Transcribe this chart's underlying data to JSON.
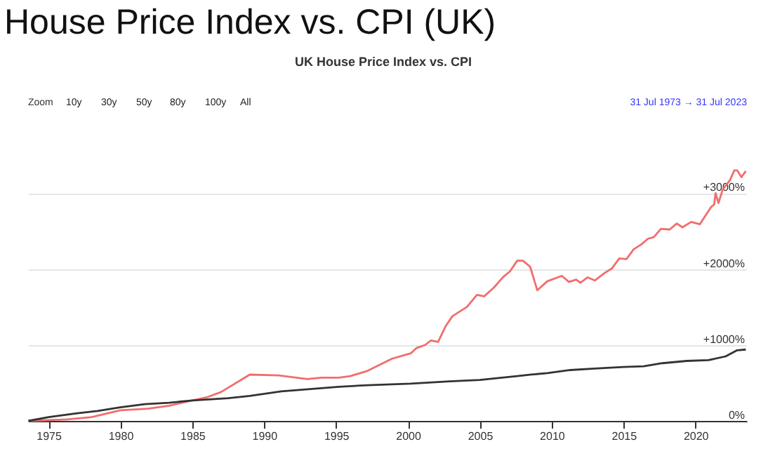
{
  "chart_data": {
    "type": "line",
    "title": "House Price Index vs. CPI (UK)",
    "subtitle": "UK House Price Index vs. CPI",
    "annotations": [
      "Zoom",
      "10y",
      "30y",
      "50y",
      "80y",
      "100y",
      "All",
      "31 Jul 1973 → 31 Jul 2023"
    ],
    "series": [
      {
        "color": "#f26d6d",
        "x": [
          1973.6,
          1975,
          1976.3,
          1978,
          1980,
          1981.9,
          1983.4,
          1985,
          1986,
          1987,
          1989,
          1991,
          1993,
          1994,
          1995.2,
          1996,
          1997.2,
          1998.9,
          2000.2,
          2000.6,
          2001.2,
          2001.6,
          2002.1,
          2002.6,
          2003.1,
          2004.1,
          2004.8,
          2005.3,
          2006,
          2006.6,
          2007.1,
          2007.6,
          2008,
          2008.5,
          2009,
          2009.7,
          2010.7,
          2011.2,
          2011.7,
          2012,
          2012.5,
          2013,
          2013.7,
          2014.2,
          2014.7,
          2015.2,
          2015.7,
          2016.2,
          2016.7,
          2017.1,
          2017.6,
          2018.2,
          2018.7,
          2019.1,
          2019.7,
          2020.3,
          2021.1,
          2021.3,
          2021.4,
          2021.6,
          2021.9,
          2022.4,
          2022.7,
          2022.9,
          2023.2,
          2023.5
        ],
        "values": [
          0,
          10,
          20,
          50,
          140,
          160,
          200,
          270,
          310,
          380,
          610,
          600,
          550,
          570,
          570,
          590,
          660,
          820,
          890,
          960,
          1000,
          1060,
          1040,
          1240,
          1380,
          1500,
          1660,
          1640,
          1760,
          1890,
          1970,
          2110,
          2110,
          2030,
          1720,
          1840,
          1910,
          1830,
          1860,
          1820,
          1890,
          1850,
          1950,
          2010,
          2140,
          2130,
          2260,
          2320,
          2400,
          2420,
          2530,
          2520,
          2600,
          2550,
          2620,
          2590,
          2820,
          2850,
          3000,
          2870,
          3050,
          3170,
          3300,
          3300,
          3210,
          3290
        ]
      },
      {
        "color": "#333333",
        "x": [
          1973.6,
          1975,
          1977,
          1978.4,
          1980,
          1981.7,
          1983.4,
          1985,
          1987.5,
          1989,
          1991.2,
          1993.2,
          1995.2,
          1997.2,
          2000.2,
          2002.9,
          2005,
          2007.6,
          2008.6,
          2009.7,
          2011.3,
          2013,
          2015,
          2016.4,
          2017.7,
          2019.4,
          2020.9,
          2022.1,
          2022.9,
          2023.5
        ],
        "values": [
          0,
          50,
          100,
          130,
          180,
          220,
          240,
          270,
          300,
          330,
          390,
          420,
          450,
          470,
          490,
          520,
          540,
          590,
          610,
          630,
          670,
          690,
          710,
          720,
          760,
          790,
          800,
          850,
          930,
          940
        ]
      }
    ],
    "xlim": [
      1973.58,
      2023.58
    ],
    "xticks": [
      1975,
      1980,
      1985,
      1990,
      1995,
      2000,
      2005,
      2010,
      2015,
      2020
    ],
    "ylim": [
      0,
      3400
    ],
    "yticks": [
      {
        "value": 0,
        "label": "0%"
      },
      {
        "value": 1000,
        "label": "+1000%"
      },
      {
        "value": 2000,
        "label": "+2000%"
      },
      {
        "value": 3000,
        "label": "+3000%"
      }
    ],
    "grid": "y",
    "legend": false,
    "marker": "none",
    "line_style": "solid"
  }
}
